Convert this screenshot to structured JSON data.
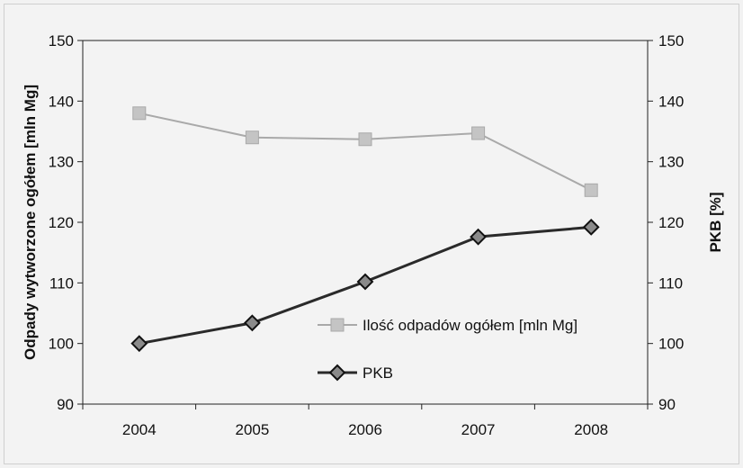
{
  "chart_data": {
    "type": "line",
    "categories": [
      "2004",
      "2005",
      "2006",
      "2007",
      "2008"
    ],
    "y_left": {
      "label": "Odpady wytworzone ogółem [mln Mg]",
      "lim": [
        90,
        150
      ],
      "ticks": [
        90,
        100,
        110,
        120,
        130,
        140,
        150
      ]
    },
    "y_right": {
      "label": "PKB [%]",
      "lim": [
        90,
        150
      ],
      "ticks": [
        90,
        100,
        110,
        120,
        130,
        140,
        150
      ]
    },
    "series": [
      {
        "name": "Ilość odpadów ogółem [mln Mg]",
        "values": [
          138,
          134,
          133.7,
          134.7,
          125.3
        ],
        "color": "#a9a9a9",
        "marker": "square"
      },
      {
        "name": "PKB",
        "values": [
          100,
          103.4,
          110.2,
          117.6,
          119.2
        ],
        "color": "#2a2a2a",
        "marker": "diamond"
      }
    ],
    "grid": false,
    "legend_position": "inside-lower-right"
  }
}
